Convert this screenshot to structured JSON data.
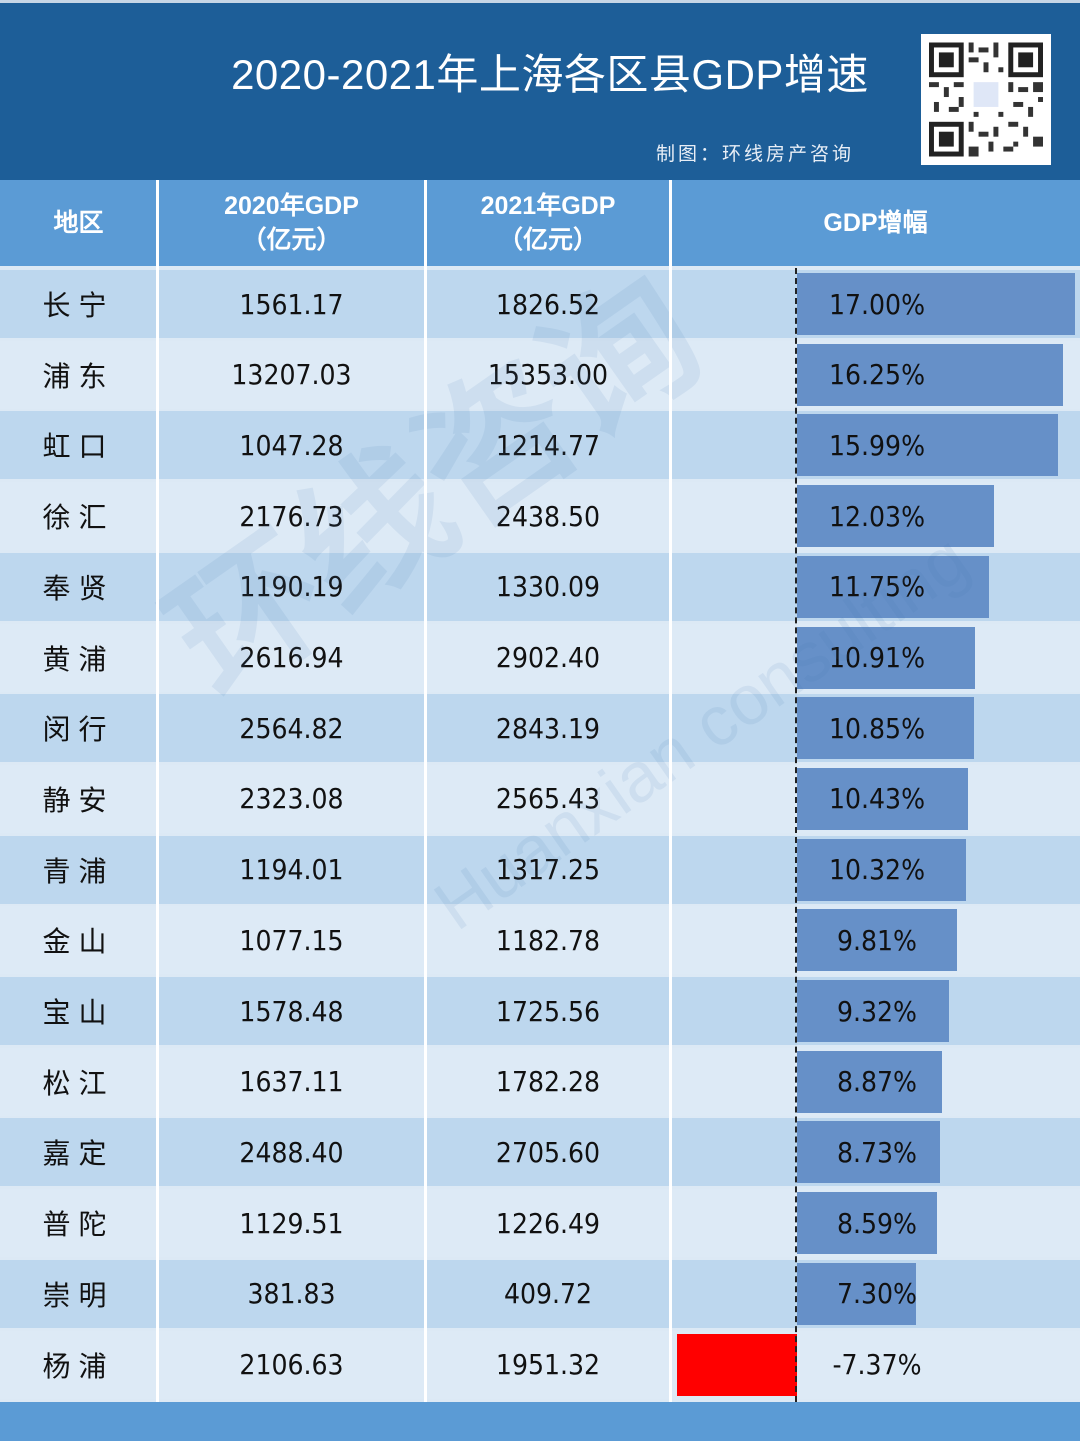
{
  "header": {
    "title": "2020-2021年上海各区县GDP增速",
    "credit": "制图：环线房产咨询",
    "qr_icon": "qr-code-icon"
  },
  "columns": {
    "region": "地区",
    "gdp2020_line1": "2020年GDP",
    "gdp2020_line2": "（亿元）",
    "gdp2021_line1": "2021年GDP",
    "gdp2021_line2": "（亿元）",
    "growth": "GDP增幅"
  },
  "rows": [
    {
      "region": "长宁",
      "gdp2020": "1561.17",
      "gdp2021": "1826.52",
      "growth": "17.00%",
      "growth_value": 17.0
    },
    {
      "region": "浦东",
      "gdp2020": "13207.03",
      "gdp2021": "15353.00",
      "growth": "16.25%",
      "growth_value": 16.25
    },
    {
      "region": "虹口",
      "gdp2020": "1047.28",
      "gdp2021": "1214.77",
      "growth": "15.99%",
      "growth_value": 15.99
    },
    {
      "region": "徐汇",
      "gdp2020": "2176.73",
      "gdp2021": "2438.50",
      "growth": "12.03%",
      "growth_value": 12.03
    },
    {
      "region": "奉贤",
      "gdp2020": "1190.19",
      "gdp2021": "1330.09",
      "growth": "11.75%",
      "growth_value": 11.75
    },
    {
      "region": "黄浦",
      "gdp2020": "2616.94",
      "gdp2021": "2902.40",
      "growth": "10.91%",
      "growth_value": 10.91
    },
    {
      "region": "闵行",
      "gdp2020": "2564.82",
      "gdp2021": "2843.19",
      "growth": "10.85%",
      "growth_value": 10.85
    },
    {
      "region": "静安",
      "gdp2020": "2323.08",
      "gdp2021": "2565.43",
      "growth": "10.43%",
      "growth_value": 10.43
    },
    {
      "region": "青浦",
      "gdp2020": "1194.01",
      "gdp2021": "1317.25",
      "growth": "10.32%",
      "growth_value": 10.32
    },
    {
      "region": "金山",
      "gdp2020": "1077.15",
      "gdp2021": "1182.78",
      "growth": "9.81%",
      "growth_value": 9.81
    },
    {
      "region": "宝山",
      "gdp2020": "1578.48",
      "gdp2021": "1725.56",
      "growth": "9.32%",
      "growth_value": 9.32
    },
    {
      "region": "松江",
      "gdp2020": "1637.11",
      "gdp2021": "1782.28",
      "growth": "8.87%",
      "growth_value": 8.87
    },
    {
      "region": "嘉定",
      "gdp2020": "2488.40",
      "gdp2021": "2705.60",
      "growth": "8.73%",
      "growth_value": 8.73
    },
    {
      "region": "普陀",
      "gdp2020": "1129.51",
      "gdp2021": "1226.49",
      "growth": "8.59%",
      "growth_value": 8.59
    },
    {
      "region": "崇明",
      "gdp2020": "381.83",
      "gdp2021": "409.72",
      "growth": "7.30%",
      "growth_value": 7.3
    },
    {
      "region": "杨浦",
      "gdp2020": "2106.63",
      "gdp2021": "1951.32",
      "growth": "-7.37%",
      "growth_value": -7.37
    }
  ],
  "watermark": {
    "main": "环线咨询",
    "sub": "Huanxian consulting"
  },
  "colors": {
    "title_band": "#1d5e98",
    "header_row": "#5b9bd5",
    "row_dark": "#bdd7ee",
    "row_light": "#ddeaf6",
    "positive_bar": "#6690c8",
    "negative_bar": "#ff0000"
  },
  "chart_data": {
    "type": "table",
    "title": "2020-2021年上海各区县GDP增速",
    "columns": [
      "地区",
      "2020年GDP（亿元）",
      "2021年GDP（亿元）",
      "GDP增幅"
    ],
    "categories": [
      "长宁",
      "浦东",
      "虹口",
      "徐汇",
      "奉贤",
      "黄浦",
      "闵行",
      "静安",
      "青浦",
      "金山",
      "宝山",
      "松江",
      "嘉定",
      "普陀",
      "崇明",
      "杨浦"
    ],
    "series": [
      {
        "name": "2020年GDP（亿元）",
        "values": [
          1561.17,
          13207.03,
          1047.28,
          2176.73,
          1190.19,
          2616.94,
          2564.82,
          2323.08,
          1194.01,
          1077.15,
          1578.48,
          1637.11,
          2488.4,
          1129.51,
          381.83,
          2106.63
        ]
      },
      {
        "name": "2021年GDP（亿元）",
        "values": [
          1826.52,
          15353.0,
          1214.77,
          2438.5,
          1330.09,
          2902.4,
          2843.19,
          2565.43,
          1317.25,
          1182.78,
          1725.56,
          1782.28,
          2705.6,
          1226.49,
          409.72,
          1951.32
        ]
      },
      {
        "name": "GDP增幅 (%)",
        "values": [
          17.0,
          16.25,
          15.99,
          12.03,
          11.75,
          10.91,
          10.85,
          10.43,
          10.32,
          9.81,
          9.32,
          8.87,
          8.73,
          8.59,
          7.3,
          -7.37
        ],
        "display": "in-cell data bars; positive blue, negative red"
      }
    ],
    "annotations": [
      "制图：环线房产咨询"
    ]
  }
}
